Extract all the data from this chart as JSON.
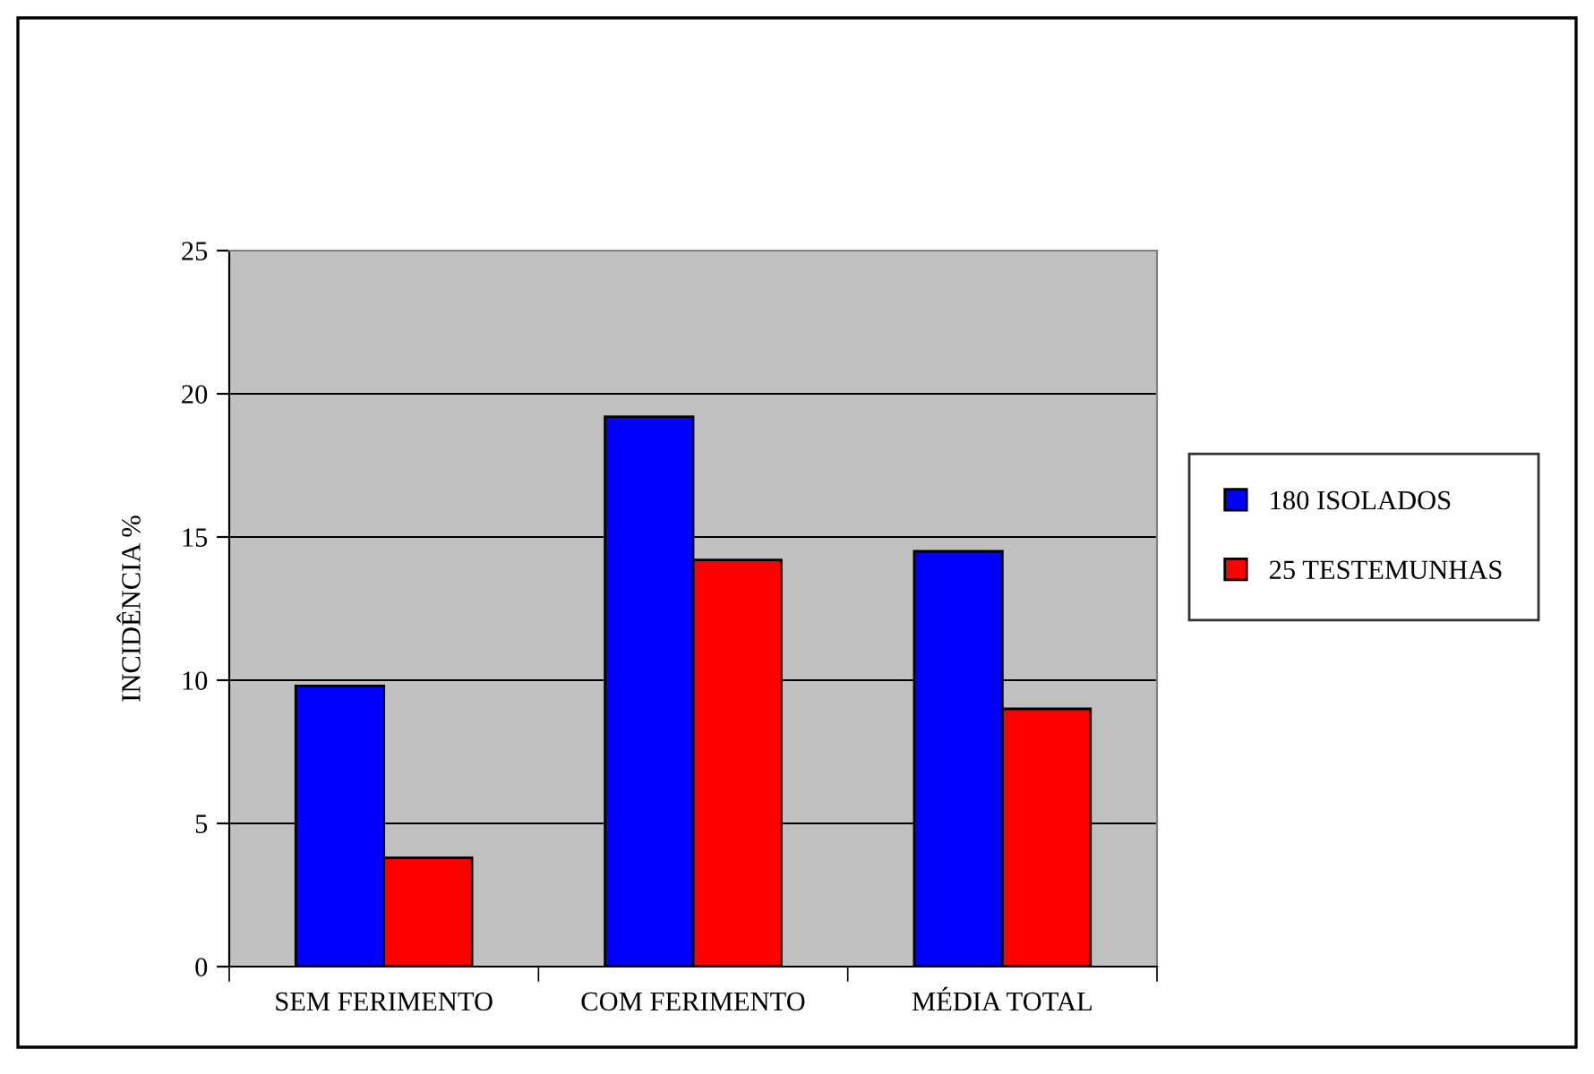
{
  "chart_data": {
    "type": "bar",
    "ylabel": "INCIDÊNCIA %",
    "categories": [
      "SEM FERIMENTO",
      "COM FERIMENTO",
      "MÉDIA TOTAL"
    ],
    "series": [
      {
        "name": "180 ISOLADOS",
        "color": "#0000ff",
        "values": [
          9.8,
          19.2,
          14.5
        ]
      },
      {
        "name": "25 TESTEMUNHAS",
        "color": "#ff0000",
        "values": [
          3.8,
          14.2,
          9.0
        ]
      }
    ],
    "ylim": [
      0,
      25
    ],
    "yticks": [
      0,
      5,
      10,
      15,
      20,
      25
    ],
    "grid": "y",
    "legend": "right"
  }
}
